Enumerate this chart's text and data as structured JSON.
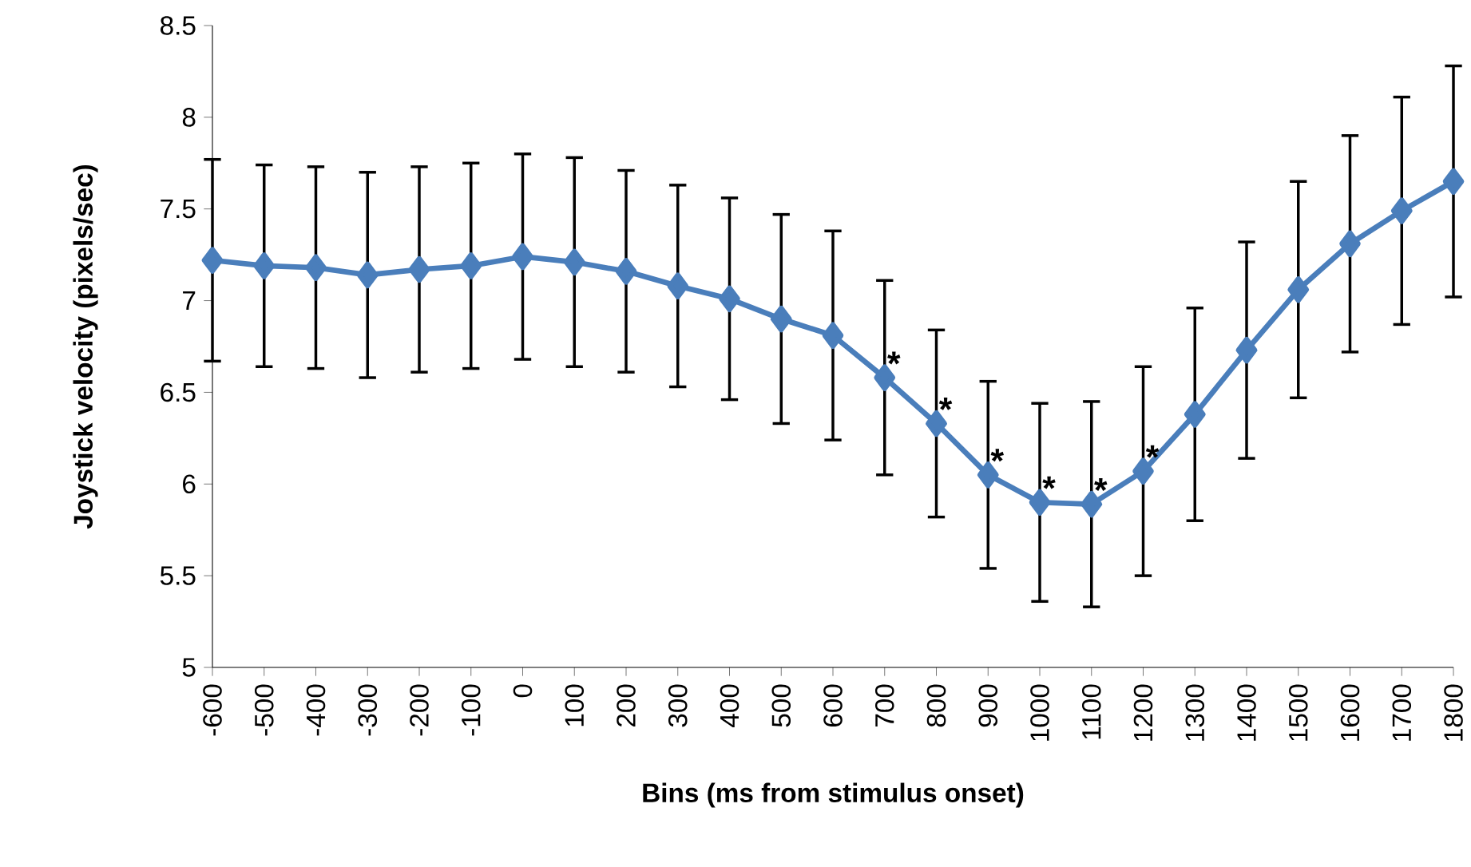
{
  "chart_data": {
    "type": "line",
    "xlabel": "Bins (ms from stimulus onset)",
    "ylabel": "Joystick velocity (pixels/sec)",
    "categories": [
      "-600",
      "-500",
      "-400",
      "-300",
      "-200",
      "-100",
      "0",
      "100",
      "200",
      "300",
      "400",
      "500",
      "600",
      "700",
      "800",
      "900",
      "1000",
      "1100",
      "1200",
      "1300",
      "1400",
      "1500",
      "1600",
      "1700",
      "1800"
    ],
    "series": [
      {
        "color": "#4a7ebb",
        "values": [
          7.22,
          7.19,
          7.18,
          7.14,
          7.17,
          7.19,
          7.24,
          7.21,
          7.16,
          7.08,
          7.01,
          6.9,
          6.81,
          6.58,
          6.33,
          6.05,
          5.9,
          5.89,
          6.07,
          6.38,
          6.73,
          7.06,
          7.31,
          7.49,
          7.65
        ],
        "errors": [
          0.55,
          0.55,
          0.55,
          0.56,
          0.56,
          0.56,
          0.56,
          0.57,
          0.55,
          0.55,
          0.55,
          0.57,
          0.57,
          0.53,
          0.51,
          0.51,
          0.54,
          0.56,
          0.57,
          0.58,
          0.59,
          0.59,
          0.59,
          0.62,
          0.63
        ]
      }
    ],
    "ylim": [
      5,
      8.5
    ],
    "yticks": [
      5,
      5.5,
      6,
      6.5,
      7,
      7.5,
      8,
      8.5
    ],
    "grid": false,
    "marker": "diamond",
    "annotations": [
      {
        "text": "*",
        "x": "700",
        "y": 6.58
      },
      {
        "text": "*",
        "x": "800",
        "y": 6.33
      },
      {
        "text": "*",
        "x": "900",
        "y": 6.05
      },
      {
        "text": "*",
        "x": "1000",
        "y": 5.9
      },
      {
        "text": "*",
        "x": "1100",
        "y": 5.89
      },
      {
        "text": "*",
        "x": "1200",
        "y": 6.07
      }
    ]
  }
}
